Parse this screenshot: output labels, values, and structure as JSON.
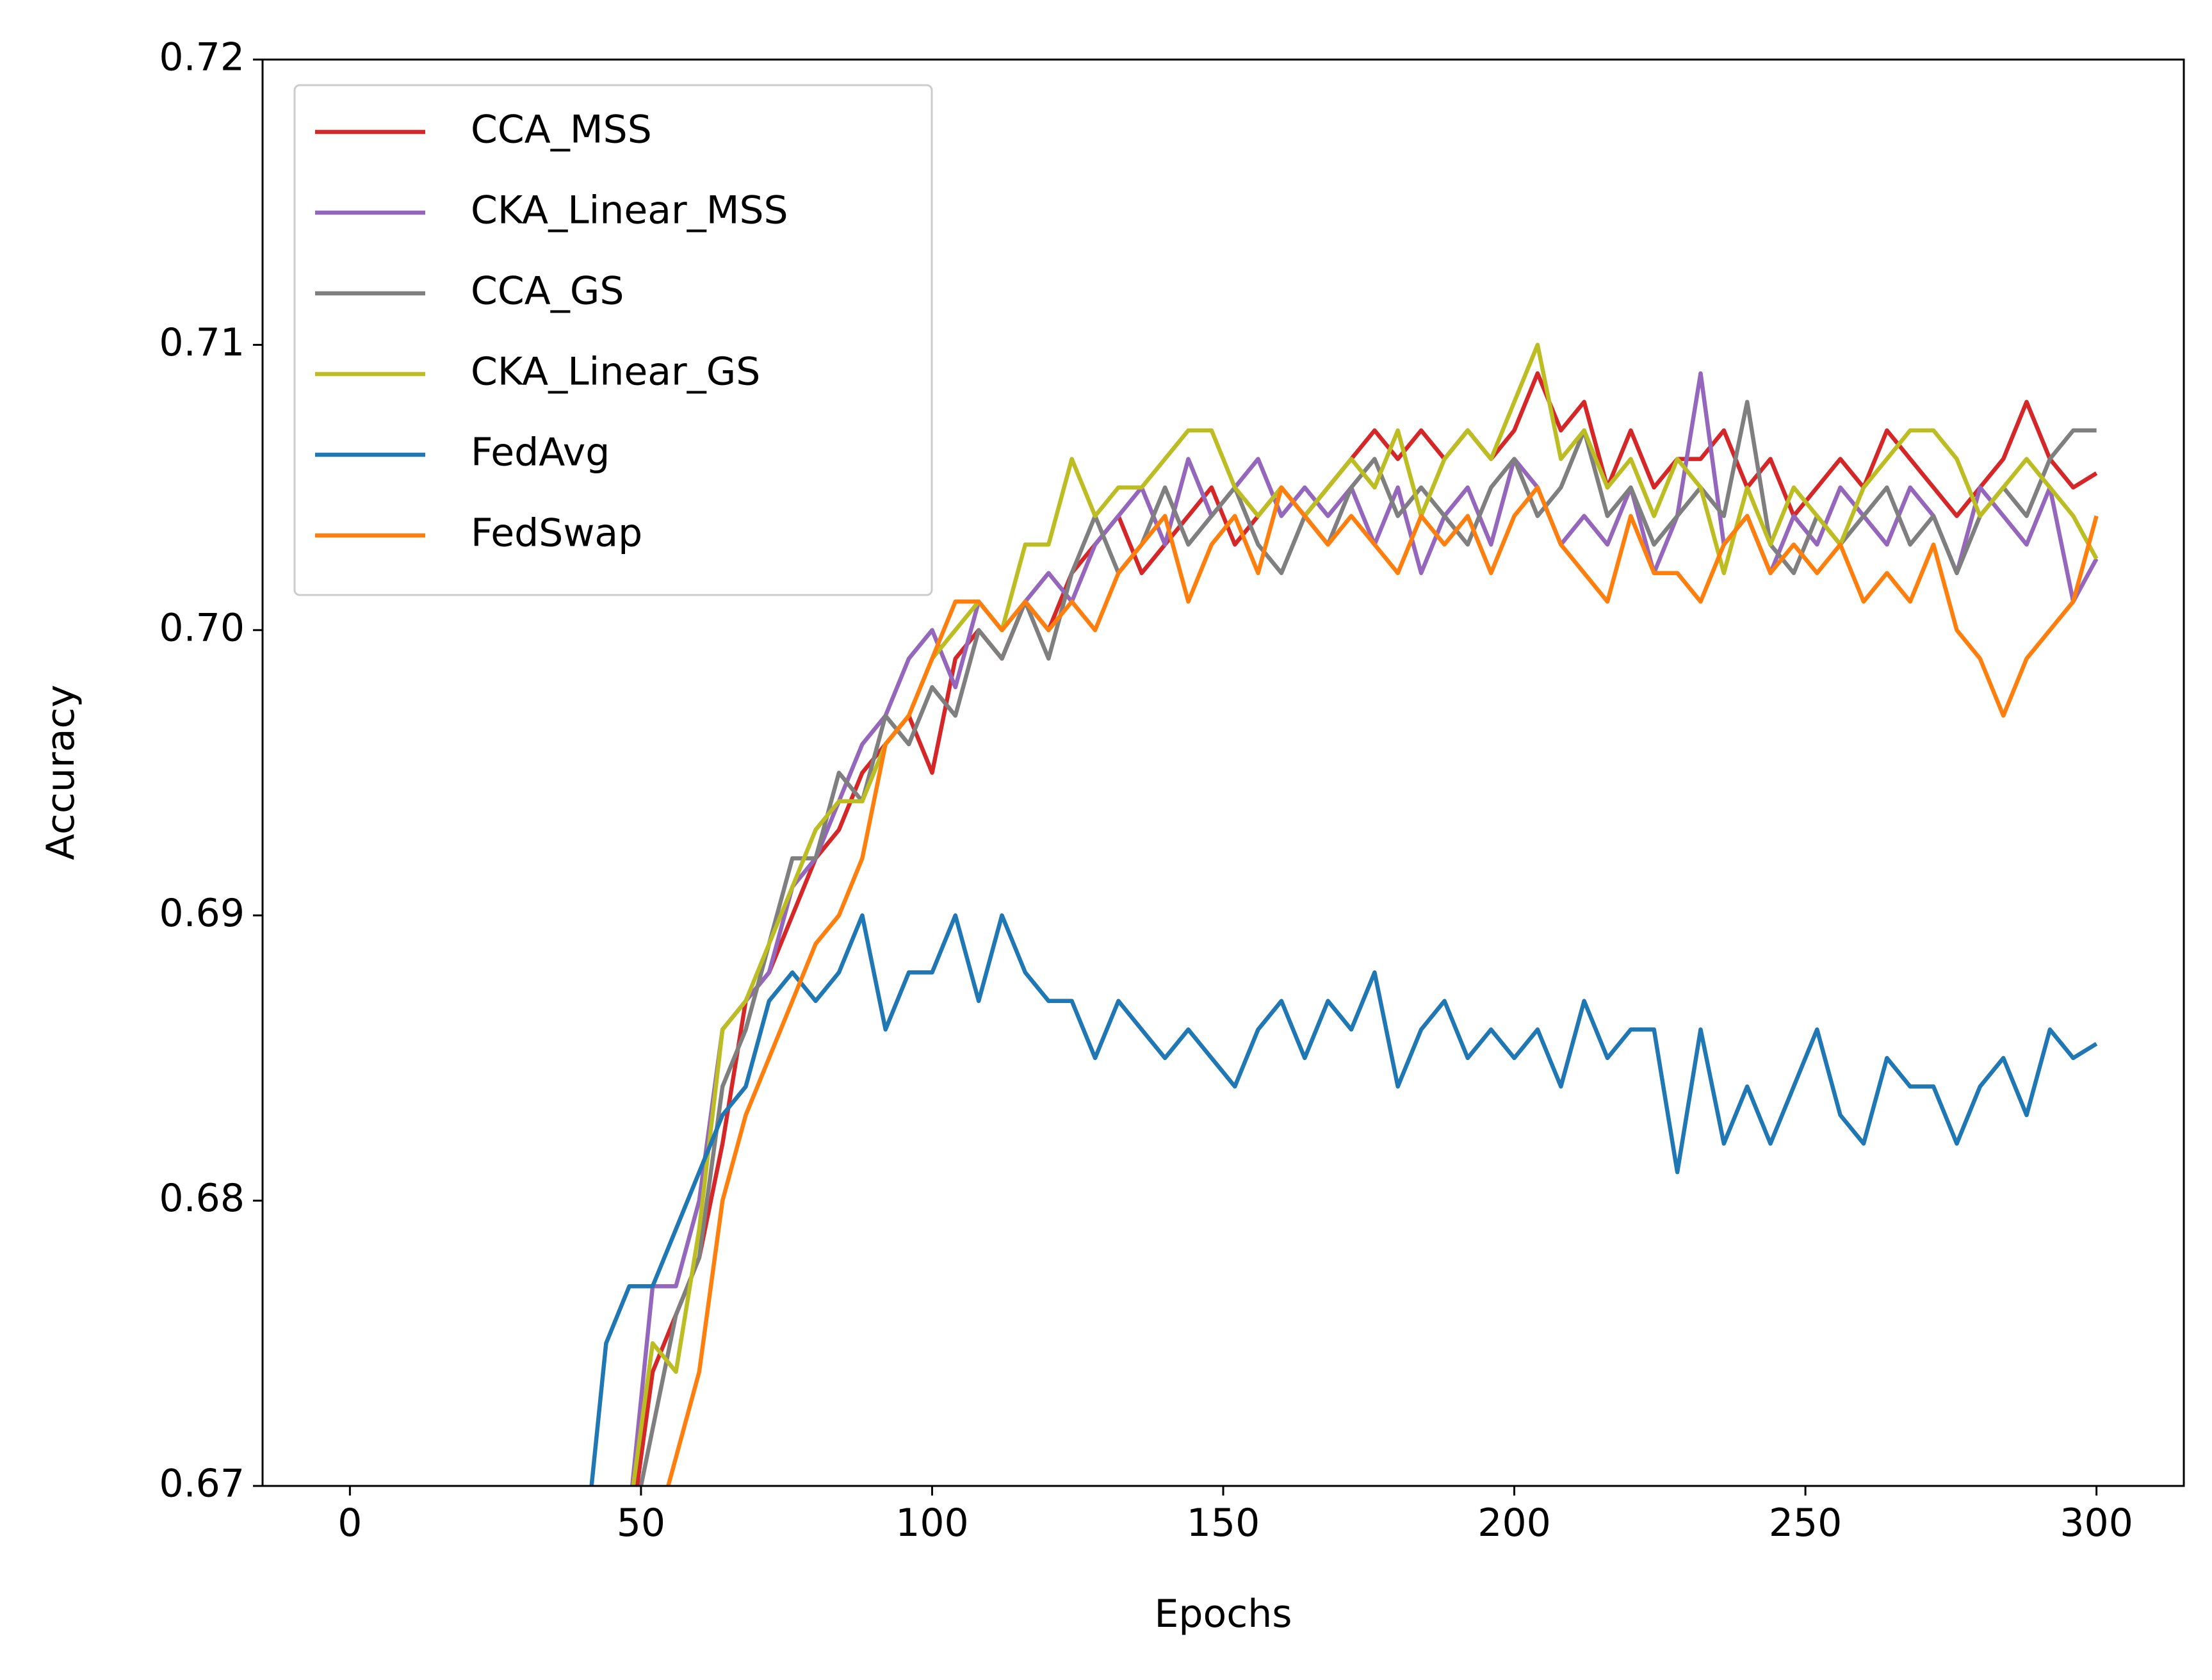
{
  "chart_data": {
    "type": "line",
    "xlabel": "Epochs",
    "ylabel": "Accuracy",
    "xlim": [
      -15,
      315
    ],
    "xticks": [
      0,
      50,
      100,
      150,
      200,
      250,
      300
    ],
    "ylim": [
      0.67,
      0.72
    ],
    "yticks": [
      0.67,
      0.68,
      0.69,
      {
        "value": 0.7,
        "label": "0.70"
      },
      0.71,
      0.72
    ],
    "legend": "upper left",
    "x": [
      40,
      44,
      48,
      52,
      56,
      60,
      64,
      68,
      72,
      76,
      80,
      84,
      88,
      92,
      96,
      100,
      104,
      108,
      112,
      116,
      120,
      124,
      128,
      132,
      136,
      140,
      144,
      148,
      152,
      156,
      160,
      164,
      168,
      172,
      176,
      180,
      184,
      188,
      192,
      196,
      200,
      204,
      208,
      212,
      216,
      220,
      224,
      228,
      232,
      236,
      240,
      244,
      248,
      252,
      256,
      260,
      264,
      268,
      272,
      276,
      280,
      284,
      288,
      292,
      296,
      300
    ],
    "series": [
      {
        "name": "CCA_MSS",
        "color": "#d62728",
        "values": [
          null,
          null,
          0.668,
          0.674,
          0.676,
          0.678,
          0.682,
          0.687,
          0.688,
          0.69,
          0.692,
          0.693,
          0.695,
          0.696,
          0.697,
          0.695,
          0.699,
          0.7,
          0.699,
          0.701,
          0.7,
          0.702,
          0.703,
          0.704,
          0.702,
          0.703,
          0.704,
          0.705,
          0.703,
          0.704,
          0.705,
          0.704,
          0.705,
          0.706,
          0.707,
          0.706,
          0.707,
          0.706,
          0.707,
          0.706,
          0.707,
          0.709,
          0.707,
          0.708,
          0.705,
          0.707,
          0.705,
          0.706,
          0.706,
          0.707,
          0.705,
          0.706,
          0.704,
          0.705,
          0.706,
          0.705,
          0.707,
          0.706,
          0.705,
          0.704,
          0.705,
          0.706,
          0.708,
          0.706,
          0.705,
          0.7055
        ]
      },
      {
        "name": "CKA_Linear_MSS",
        "color": "#9467bd",
        "values": [
          null,
          null,
          0.669,
          0.677,
          0.677,
          0.68,
          0.686,
          0.687,
          0.688,
          0.691,
          0.692,
          0.694,
          0.696,
          0.697,
          0.699,
          0.7,
          0.698,
          0.701,
          0.7,
          0.701,
          0.702,
          0.701,
          0.703,
          0.704,
          0.705,
          0.703,
          0.706,
          0.704,
          0.705,
          0.706,
          0.704,
          0.705,
          0.704,
          0.705,
          0.703,
          0.705,
          0.702,
          0.704,
          0.705,
          0.703,
          0.706,
          0.705,
          0.703,
          0.704,
          0.703,
          0.705,
          0.702,
          0.704,
          0.709,
          0.703,
          0.704,
          0.702,
          0.704,
          0.703,
          0.705,
          0.704,
          0.703,
          0.705,
          0.704,
          0.702,
          0.705,
          0.704,
          0.703,
          0.705,
          0.701,
          0.7025
        ]
      },
      {
        "name": "CCA_GS",
        "color": "#7f7f7f",
        "values": [
          null,
          null,
          0.668,
          0.672,
          0.676,
          0.678,
          0.684,
          0.686,
          0.689,
          0.692,
          0.692,
          0.695,
          0.694,
          0.697,
          0.696,
          0.698,
          0.697,
          0.7,
          0.699,
          0.701,
          0.699,
          0.702,
          0.704,
          0.702,
          0.703,
          0.705,
          0.703,
          0.704,
          0.705,
          0.703,
          0.702,
          0.704,
          0.703,
          0.705,
          0.706,
          0.704,
          0.705,
          0.704,
          0.703,
          0.705,
          0.706,
          0.704,
          0.705,
          0.707,
          0.704,
          0.705,
          0.703,
          0.704,
          0.705,
          0.704,
          0.708,
          0.703,
          0.702,
          0.704,
          0.703,
          0.704,
          0.705,
          0.703,
          0.704,
          0.702,
          0.704,
          0.705,
          0.704,
          0.706,
          0.707,
          0.707
        ]
      },
      {
        "name": "CKA_Linear_GS",
        "color": "#bcbd22",
        "values": [
          null,
          null,
          0.669,
          0.675,
          0.674,
          0.679,
          0.686,
          0.687,
          0.689,
          0.691,
          0.693,
          0.694,
          0.694,
          0.696,
          0.697,
          0.699,
          0.7,
          0.701,
          0.7,
          0.703,
          0.703,
          0.706,
          0.704,
          0.705,
          0.705,
          0.706,
          0.707,
          0.707,
          0.705,
          0.704,
          0.705,
          0.704,
          0.705,
          0.706,
          0.705,
          0.707,
          0.704,
          0.706,
          0.707,
          0.706,
          0.708,
          0.71,
          0.706,
          0.707,
          0.705,
          0.706,
          0.704,
          0.706,
          0.705,
          0.702,
          0.705,
          0.703,
          0.705,
          0.704,
          0.703,
          0.705,
          0.706,
          0.707,
          0.707,
          0.706,
          0.704,
          0.705,
          0.706,
          0.705,
          0.704,
          0.7025
        ]
      },
      {
        "name": "FedAvg",
        "color": "#1f77b4",
        "values": [
          0.667,
          0.675,
          0.677,
          0.677,
          0.679,
          0.681,
          0.683,
          0.684,
          0.687,
          0.688,
          0.687,
          0.688,
          0.69,
          0.686,
          0.688,
          0.688,
          0.69,
          0.687,
          0.69,
          0.688,
          0.687,
          0.687,
          0.685,
          0.687,
          0.686,
          0.685,
          0.686,
          0.685,
          0.684,
          0.686,
          0.687,
          0.685,
          0.687,
          0.686,
          0.688,
          0.684,
          0.686,
          0.687,
          0.685,
          0.686,
          0.685,
          0.686,
          0.684,
          0.687,
          0.685,
          0.686,
          0.686,
          0.681,
          0.686,
          0.682,
          0.684,
          0.682,
          0.684,
          0.686,
          0.683,
          0.682,
          0.685,
          0.684,
          0.684,
          0.682,
          0.684,
          0.685,
          0.683,
          0.686,
          0.685,
          0.6855
        ]
      },
      {
        "name": "FedSwap",
        "color": "#ff7f0e",
        "values": [
          null,
          null,
          null,
          0.668,
          0.671,
          0.674,
          0.68,
          0.683,
          0.685,
          0.687,
          0.689,
          0.69,
          0.692,
          0.696,
          0.697,
          0.699,
          0.701,
          0.701,
          0.7,
          0.701,
          0.7,
          0.701,
          0.7,
          0.702,
          0.703,
          0.704,
          0.701,
          0.703,
          0.704,
          0.702,
          0.705,
          0.704,
          0.703,
          0.704,
          0.703,
          0.702,
          0.704,
          0.703,
          0.704,
          0.702,
          0.704,
          0.705,
          0.703,
          0.702,
          0.701,
          0.704,
          0.702,
          0.702,
          0.701,
          0.703,
          0.704,
          0.702,
          0.703,
          0.702,
          0.703,
          0.701,
          0.702,
          0.701,
          0.703,
          0.7,
          0.699,
          0.697,
          0.699,
          0.7,
          0.701,
          0.704
        ]
      }
    ]
  }
}
